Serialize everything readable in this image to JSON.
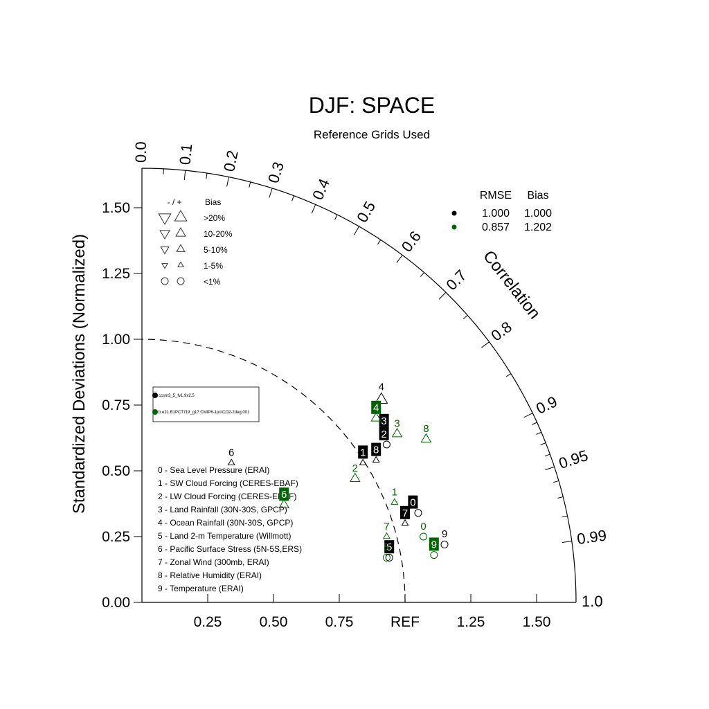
{
  "chart_data": {
    "type": "scatter",
    "subtype": "taylor-diagram",
    "title": "DJF: SPACE",
    "subtitle": "Reference Grids Used",
    "ylabel": "Standardized Deviations (Normalized)",
    "correlation_label": "Correlation",
    "ref_label": "REF",
    "y_ticks": [
      "0.00",
      "0.25",
      "0.50",
      "0.75",
      "1.00",
      "1.25",
      "1.50"
    ],
    "x_ticks": [
      "0.25",
      "0.50",
      "0.75",
      "1.25",
      "1.50"
    ],
    "sd_max": 1.65,
    "correlation_ticks": [
      {
        "value": 0.0,
        "label": "0.0"
      },
      {
        "value": 0.1,
        "label": "0.1"
      },
      {
        "value": 0.2,
        "label": "0.2"
      },
      {
        "value": 0.3,
        "label": "0.3"
      },
      {
        "value": 0.4,
        "label": "0.4"
      },
      {
        "value": 0.5,
        "label": "0.5"
      },
      {
        "value": 0.6,
        "label": "0.6"
      },
      {
        "value": 0.7,
        "label": "0.7"
      },
      {
        "value": 0.8,
        "label": "0.8"
      },
      {
        "value": 0.9,
        "label": "0.9"
      },
      {
        "value": 0.95,
        "label": "0.95"
      },
      {
        "value": 0.99,
        "label": "0.99"
      },
      {
        "value": 1.0,
        "label": "1.0"
      }
    ],
    "bias_legend": {
      "header_symbols": "- / +",
      "header_bias": "Bias",
      "rows": [
        {
          "label": ">20%",
          "size": "xl"
        },
        {
          "label": "10-20%",
          "size": "l"
        },
        {
          "label": "5-10%",
          "size": "m"
        },
        {
          "label": "1-5%",
          "size": "s"
        },
        {
          "label": "<1%",
          "size": "circle"
        }
      ]
    },
    "stats_header": {
      "rmse": "RMSE",
      "bias": "Bias"
    },
    "series": [
      {
        "name": "ccsm3_5_fv1.9x2.5",
        "color": "#000000",
        "rmse": "1.000",
        "bias": "1.000"
      },
      {
        "name": "b.e21.B1PCT.f19_g17.CMIP6-1pctCO2-2deg.001",
        "color": "#006400",
        "rmse": "0.857",
        "bias": "1.202"
      }
    ],
    "variables": [
      "0 - Sea Level Pressure (ERAI)",
      "1 - SW Cloud Forcing (CERES-EBAF)",
      "2 - LW Cloud Forcing (CERES-EBAF)",
      "3 - Land Rainfall (30N-30S, GPCP)",
      "4 - Ocean Rainfall (30N-30S, GPCP)",
      "5 - Land 2-m Temperature (Willmott)",
      "6 - Pacific Surface Stress (5N-5S,ERS)",
      "7 - Zonal Wind (300mb, ERAI)",
      "8 - Relative Humidity (ERAI)",
      "9 - Temperature (ERAI)"
    ],
    "points": [
      {
        "series": 0,
        "label": "0",
        "x": 1.05,
        "y": 0.34,
        "marker": "circle",
        "boxed": true,
        "lx": 1.03,
        "ly": 0.38
      },
      {
        "series": 0,
        "label": "1",
        "x": 0.84,
        "y": 0.53,
        "marker": "tri-up-s",
        "boxed": true,
        "lx": 0.84,
        "ly": 0.57
      },
      {
        "series": 0,
        "label": "2",
        "x": 0.93,
        "y": 0.6,
        "marker": "circle",
        "boxed": true,
        "lx": 0.92,
        "ly": 0.64
      },
      {
        "series": 0,
        "label": "3",
        "x": 0.92,
        "y": 0.64,
        "marker": "none",
        "boxed": true,
        "lx": 0.92,
        "ly": 0.69
      },
      {
        "series": 0,
        "label": "4",
        "x": 0.91,
        "y": 0.77,
        "marker": "tri-up-l",
        "boxed": false,
        "lx": 0.91,
        "ly": 0.82
      },
      {
        "series": 0,
        "label": "5",
        "x": 0.94,
        "y": 0.17,
        "marker": "circle",
        "boxed": true,
        "lx": 0.94,
        "ly": 0.21
      },
      {
        "series": 0,
        "label": "6",
        "x": 0.34,
        "y": 0.53,
        "marker": "tri-up-s",
        "boxed": false,
        "lx": 0.34,
        "ly": 0.57
      },
      {
        "series": 0,
        "label": "7",
        "x": 1.0,
        "y": 0.3,
        "marker": "tri-up-s",
        "boxed": true,
        "lx": 1.0,
        "ly": 0.34
      },
      {
        "series": 0,
        "label": "8",
        "x": 0.89,
        "y": 0.54,
        "marker": "tri-up-s",
        "boxed": true,
        "lx": 0.89,
        "ly": 0.58
      },
      {
        "series": 0,
        "label": "9",
        "x": 1.15,
        "y": 0.22,
        "marker": "circle",
        "boxed": false,
        "lx": 1.15,
        "ly": 0.26
      },
      {
        "series": 1,
        "label": "0",
        "x": 1.07,
        "y": 0.25,
        "marker": "circle",
        "boxed": false,
        "lx": 1.07,
        "ly": 0.29
      },
      {
        "series": 1,
        "label": "1",
        "x": 0.96,
        "y": 0.38,
        "marker": "tri-up-s",
        "boxed": false,
        "lx": 0.96,
        "ly": 0.42
      },
      {
        "series": 1,
        "label": "2",
        "x": 0.81,
        "y": 0.47,
        "marker": "tri-up-m",
        "boxed": false,
        "lx": 0.81,
        "ly": 0.51
      },
      {
        "series": 1,
        "label": "3",
        "x": 0.97,
        "y": 0.64,
        "marker": "tri-up-m",
        "boxed": false,
        "lx": 0.97,
        "ly": 0.68
      },
      {
        "series": 1,
        "label": "4",
        "x": 0.89,
        "y": 0.7,
        "marker": "tri-up-m",
        "boxed": true,
        "lx": 0.89,
        "ly": 0.74
      },
      {
        "series": 1,
        "label": "5",
        "x": 0.93,
        "y": 0.17,
        "marker": "circle",
        "boxed": false,
        "lx": 0.93,
        "ly": 0.21
      },
      {
        "series": 1,
        "label": "6",
        "x": 0.54,
        "y": 0.37,
        "marker": "tri-up-m",
        "boxed": true,
        "lx": 0.54,
        "ly": 0.41
      },
      {
        "series": 1,
        "label": "7",
        "x": 0.93,
        "y": 0.25,
        "marker": "tri-up-s",
        "boxed": false,
        "lx": 0.93,
        "ly": 0.29
      },
      {
        "series": 1,
        "label": "8",
        "x": 1.08,
        "y": 0.62,
        "marker": "tri-up-m",
        "boxed": false,
        "lx": 1.08,
        "ly": 0.66
      },
      {
        "series": 1,
        "label": "9",
        "x": 1.11,
        "y": 0.18,
        "marker": "circle",
        "boxed": true,
        "lx": 1.11,
        "ly": 0.22
      }
    ]
  }
}
